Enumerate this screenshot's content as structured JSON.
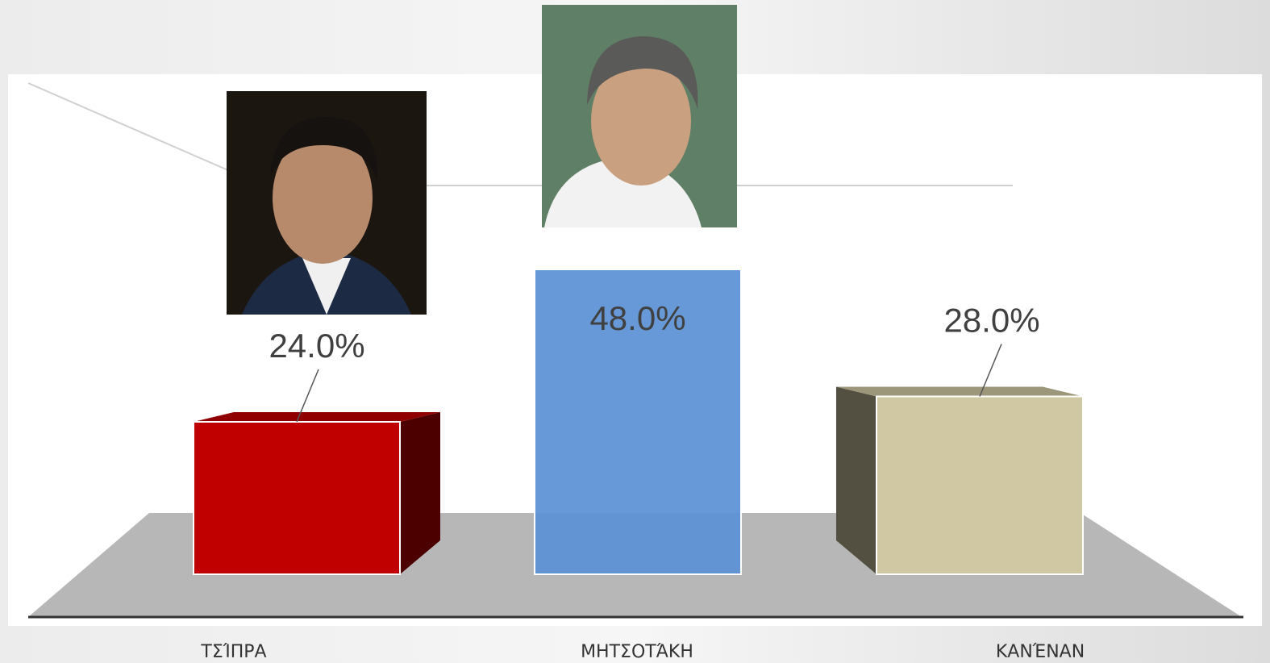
{
  "chart_data": {
    "type": "bar3d",
    "categories": [
      "ΤΣΊΠΡΑ",
      "ΜΗΤΣΟΤΆΚΗ",
      "ΚΑΝΈΝΑΝ"
    ],
    "values": [
      24,
      48,
      28
    ],
    "value_labels": [
      "24.0%",
      "48.0%",
      "28.0%"
    ],
    "colors": [
      "#c00000",
      "#5a8fd4",
      "#d0c8a2"
    ]
  }
}
